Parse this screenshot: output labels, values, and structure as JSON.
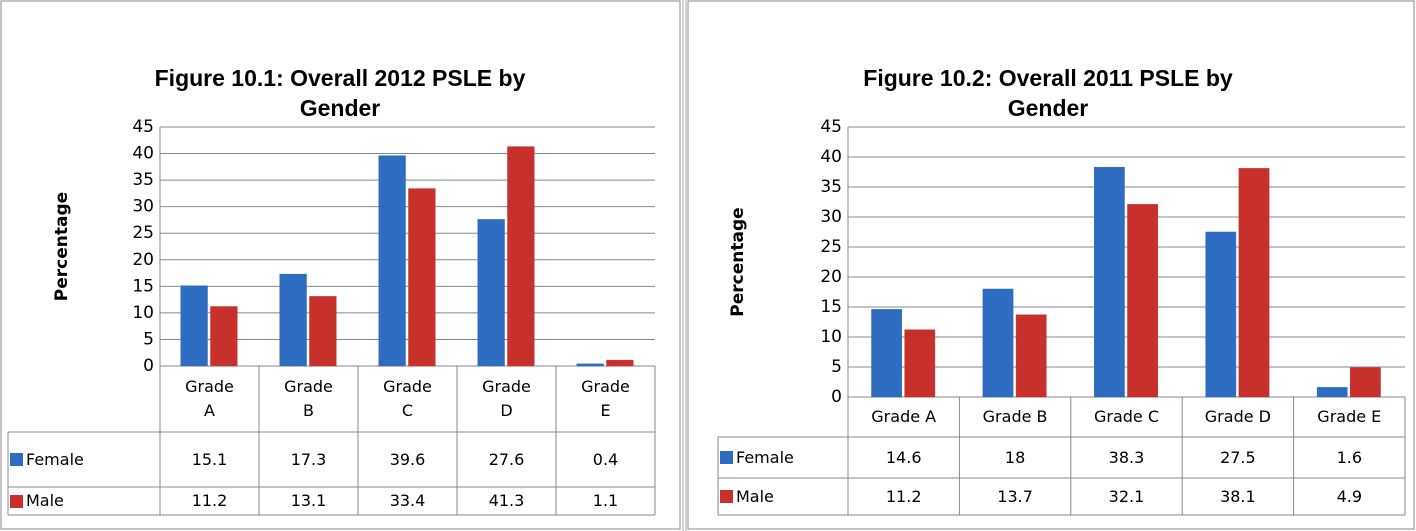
{
  "chart_data": [
    {
      "type": "bar",
      "title": "Figure 10.1: Overall 2012 PSLE by Gender",
      "ylabel": "Percentage",
      "categories": [
        "Grade A",
        "Grade B",
        "Grade C",
        "Grade D",
        "Grade E"
      ],
      "series": [
        {
          "name": "Female",
          "color": "#2e6cc2",
          "values": [
            15.1,
            17.3,
            39.6,
            27.6,
            0.4
          ]
        },
        {
          "name": "Male",
          "color": "#c8302c",
          "values": [
            11.2,
            13.1,
            33.4,
            41.3,
            1.1
          ]
        }
      ],
      "ylim": [
        0,
        45
      ],
      "yticks": [
        0,
        5,
        10,
        15,
        20,
        25,
        30,
        35,
        40,
        45
      ],
      "grid": true
    },
    {
      "type": "bar",
      "title": "Figure 10.2: Overall 2011 PSLE by Gender",
      "ylabel": "Percentage",
      "categories": [
        "Grade A",
        "Grade B",
        "Grade C",
        "Grade D",
        "Grade E"
      ],
      "series": [
        {
          "name": "Female",
          "color": "#2e6cc2",
          "values": [
            14.6,
            18,
            38.3,
            27.5,
            1.6
          ]
        },
        {
          "name": "Male",
          "color": "#c8302c",
          "values": [
            11.2,
            13.7,
            32.1,
            38.1,
            4.9
          ]
        }
      ],
      "ylim": [
        0,
        45
      ],
      "yticks": [
        0,
        5,
        10,
        15,
        20,
        25,
        30,
        35,
        40,
        45
      ],
      "grid": true
    }
  ]
}
